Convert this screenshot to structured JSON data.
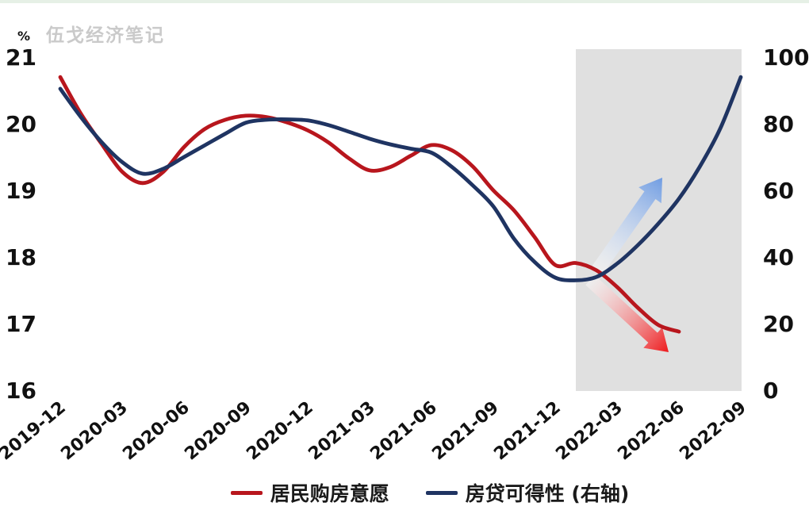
{
  "page": {
    "top_strip_color": "#e6f0e6",
    "background": "#ffffff"
  },
  "watermark": {
    "text": "伍戈经济笔记",
    "color": "#cacaca"
  },
  "legend": {
    "items": [
      {
        "label": "居民购房意愿",
        "color": "#b8161d"
      },
      {
        "label": "房贷可得性 (右轴)",
        "color": "#1f3462"
      }
    ]
  },
  "chart_data": {
    "type": "line",
    "title": "",
    "left_axis": {
      "unit": "%",
      "ticks": [
        21,
        20,
        19,
        18,
        17,
        16
      ],
      "min": 16,
      "max": 21
    },
    "right_axis": {
      "ticks": [
        100,
        80,
        60,
        40,
        20,
        0
      ],
      "min": 0,
      "max": 100
    },
    "x_ticks": [
      "2019-12",
      "2020-03",
      "2020-06",
      "2020-09",
      "2020-12",
      "2021-03",
      "2021-06",
      "2021-09",
      "2021-12",
      "2022-03",
      "2022-06",
      "2022-09"
    ],
    "x_months": [
      "2019-12",
      "2020-01",
      "2020-02",
      "2020-03",
      "2020-04",
      "2020-05",
      "2020-06",
      "2020-07",
      "2020-08",
      "2020-09",
      "2020-10",
      "2020-11",
      "2020-12",
      "2021-01",
      "2021-02",
      "2021-03",
      "2021-04",
      "2021-05",
      "2021-06",
      "2021-07",
      "2021-08",
      "2021-09",
      "2021-10",
      "2021-11",
      "2021-12",
      "2022-01",
      "2022-02",
      "2022-03",
      "2022-04",
      "2022-05",
      "2022-06",
      "2022-07",
      "2022-08",
      "2022-09"
    ],
    "series": [
      {
        "name": "居民购房意愿",
        "axis": "left",
        "color": "#b8161d",
        "start_month": "2019-12",
        "values": [
          20.7,
          20.15,
          19.7,
          19.28,
          19.11,
          19.28,
          19.65,
          19.92,
          20.06,
          20.12,
          20.1,
          20.02,
          19.9,
          19.72,
          19.48,
          19.3,
          19.35,
          19.52,
          19.68,
          19.6,
          19.36,
          19.0,
          18.7,
          18.3,
          17.88,
          17.91,
          17.8,
          17.55,
          17.24,
          16.98,
          16.88
        ]
      },
      {
        "name": "房贷可得性 (右轴)",
        "axis": "right",
        "color": "#1f3462",
        "start_month": "2019-12",
        "values": [
          90.5,
          82.0,
          74.5,
          68.5,
          65.0,
          66.5,
          70.0,
          73.5,
          77.0,
          80.3,
          81.2,
          81.3,
          81.0,
          79.6,
          77.6,
          75.5,
          73.8,
          72.5,
          71.3,
          67.0,
          61.5,
          55.2,
          45.5,
          38.5,
          33.8,
          33.0,
          34.0,
          38.0,
          43.5,
          50.0,
          57.5,
          67.0,
          78.5,
          94.0
        ]
      }
    ],
    "highlight_region": {
      "x_start": "2022-01",
      "x_end": "2022-09",
      "color": "#e0e0e0"
    },
    "annotations": [
      {
        "type": "arrow",
        "name": "rise-arrow",
        "direction": "up-right",
        "color": "#6f9ce2",
        "from": [
          753,
          341
        ],
        "to": [
          835,
          224
        ]
      },
      {
        "type": "arrow",
        "name": "fall-arrow",
        "direction": "down-right",
        "color": "#ee1a1d",
        "from": [
          744,
          353
        ],
        "to": [
          843,
          444
        ]
      }
    ],
    "layout_hints": {
      "gridlines": false,
      "axis_lines": false,
      "legend_position": "bottom-center",
      "x_label_rotation_deg": -40
    }
  }
}
